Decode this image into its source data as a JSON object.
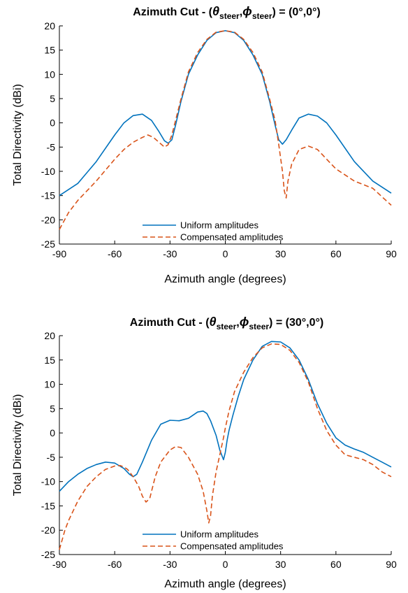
{
  "chart_data": [
    {
      "type": "line",
      "title_prefix": "Azimuth Cut -",
      "title_theta": "θ",
      "title_phi": "ϕ",
      "title_sub": "steer",
      "title_value": "(0°,0°)",
      "xlabel": "Azimuth angle (degrees)",
      "ylabel": "Total Directivity (dBi)",
      "xlim": [
        -90,
        90
      ],
      "ylim": [
        -25,
        20
      ],
      "xticks": [
        -90,
        -60,
        -30,
        0,
        30,
        60,
        90
      ],
      "yticks": [
        20,
        15,
        10,
        5,
        0,
        -5,
        -10,
        -15,
        -20,
        -25
      ],
      "grid": false,
      "legend_position": "bottom-center",
      "series": [
        {
          "name": "Uniform amplitudes",
          "color": "#0072BD",
          "style": "solid",
          "x": [
            -90,
            -80,
            -70,
            -60,
            -55,
            -50,
            -45,
            -40,
            -36,
            -33,
            -31,
            -29,
            -27,
            -24,
            -20,
            -15,
            -10,
            -5,
            0,
            5,
            10,
            15,
            20,
            24,
            27,
            29,
            31,
            33,
            36,
            40,
            45,
            50,
            55,
            60,
            70,
            80,
            90
          ],
          "y": [
            -15,
            -12.5,
            -8,
            -2.5,
            0,
            1.5,
            1.8,
            0.5,
            -1.8,
            -3.7,
            -4.2,
            -3.5,
            -0.5,
            4.5,
            10,
            14,
            17,
            18.6,
            19,
            18.6,
            17,
            14,
            10,
            4.5,
            -0.5,
            -3.5,
            -4.4,
            -3.5,
            -1.5,
            1,
            1.8,
            1.4,
            0,
            -2.5,
            -8,
            -12,
            -14.5
          ]
        },
        {
          "name": "Compensated amplitudes",
          "color": "#D95319",
          "style": "dashed",
          "x": [
            -90,
            -85,
            -80,
            -70,
            -60,
            -55,
            -50,
            -45,
            -42,
            -39,
            -36,
            -33,
            -31,
            -29,
            -27,
            -24,
            -20,
            -15,
            -10,
            -5,
            0,
            5,
            10,
            15,
            20,
            24,
            27,
            29,
            31,
            32,
            33,
            34,
            36,
            40,
            45,
            50,
            55,
            60,
            70,
            80,
            90
          ],
          "y": [
            -22,
            -18.5,
            -16,
            -12,
            -7.5,
            -5.5,
            -4,
            -3,
            -2.5,
            -3,
            -4,
            -5,
            -4.5,
            -2.5,
            0.5,
            5,
            10.5,
            14.5,
            17.2,
            18.7,
            19,
            18.7,
            17.2,
            14.5,
            10.5,
            5,
            0.5,
            -4.5,
            -10,
            -14,
            -15.5,
            -12,
            -8.5,
            -5.5,
            -4.8,
            -5.5,
            -7.5,
            -9.5,
            -12,
            -13.5,
            -17
          ]
        }
      ]
    },
    {
      "type": "line",
      "title_prefix": "Azimuth Cut -",
      "title_theta": "θ",
      "title_phi": "ϕ",
      "title_sub": "steer",
      "title_value": "(30°,0°)",
      "xlabel": "Azimuth angle (degrees)",
      "ylabel": "Total Directivity (dBi)",
      "xlim": [
        -90,
        90
      ],
      "ylim": [
        -25,
        20
      ],
      "xticks": [
        -90,
        -60,
        -30,
        0,
        30,
        60,
        90
      ],
      "yticks": [
        20,
        15,
        10,
        5,
        0,
        -5,
        -10,
        -15,
        -20,
        -25
      ],
      "grid": false,
      "legend_position": "bottom-center",
      "series": [
        {
          "name": "Uniform amplitudes",
          "color": "#0072BD",
          "style": "solid",
          "x": [
            -90,
            -85,
            -80,
            -75,
            -70,
            -65,
            -60,
            -55,
            -52,
            -50,
            -48,
            -45,
            -40,
            -35,
            -30,
            -25,
            -20,
            -15,
            -12,
            -10,
            -8,
            -5,
            -3,
            -1,
            0,
            1,
            2,
            4,
            7,
            10,
            15,
            20,
            25,
            30,
            35,
            40,
            45,
            50,
            55,
            60,
            65,
            70,
            75,
            80,
            85,
            90
          ],
          "y": [
            -12,
            -10,
            -8.5,
            -7.3,
            -6.5,
            -6,
            -6.2,
            -7.3,
            -8.5,
            -9,
            -8.5,
            -6,
            -1.5,
            1.8,
            2.6,
            2.5,
            3,
            4.3,
            4.5,
            4,
            2.5,
            -0.5,
            -3.5,
            -5.5,
            -4,
            -1.5,
            0.5,
            3.5,
            7.5,
            11,
            15,
            17.8,
            18.8,
            18.7,
            17.5,
            15,
            11,
            6,
            2,
            -1,
            -2.5,
            -3.3,
            -4,
            -5,
            -6,
            -7
          ]
        },
        {
          "name": "Compensated amplitudes",
          "color": "#D95319",
          "style": "dashed",
          "x": [
            -90,
            -87,
            -85,
            -80,
            -75,
            -70,
            -65,
            -60,
            -57,
            -55,
            -53,
            -50,
            -47,
            -45,
            -43,
            -41,
            -40,
            -38,
            -35,
            -30,
            -27,
            -24,
            -20,
            -15,
            -12,
            -10,
            -9,
            -8,
            -7,
            -5,
            -3,
            -1,
            0,
            2,
            5,
            10,
            15,
            20,
            25,
            30,
            35,
            40,
            45,
            50,
            55,
            60,
            65,
            70,
            75,
            80,
            85,
            90
          ],
          "y": [
            -24,
            -20,
            -18,
            -14,
            -11,
            -9,
            -7.5,
            -6.8,
            -6.7,
            -7,
            -7.5,
            -9,
            -11,
            -13,
            -14.2,
            -13.5,
            -12,
            -9,
            -6,
            -3.5,
            -2.8,
            -3,
            -5,
            -8.5,
            -12,
            -16,
            -18.5,
            -17,
            -13,
            -8,
            -4.5,
            -1,
            1,
            4.5,
            8.5,
            12.5,
            15.5,
            17.5,
            18.3,
            18.2,
            17,
            14.5,
            10.5,
            5,
            0.5,
            -2.5,
            -4.5,
            -5,
            -5.5,
            -6.5,
            -8,
            -9
          ]
        }
      ]
    }
  ]
}
